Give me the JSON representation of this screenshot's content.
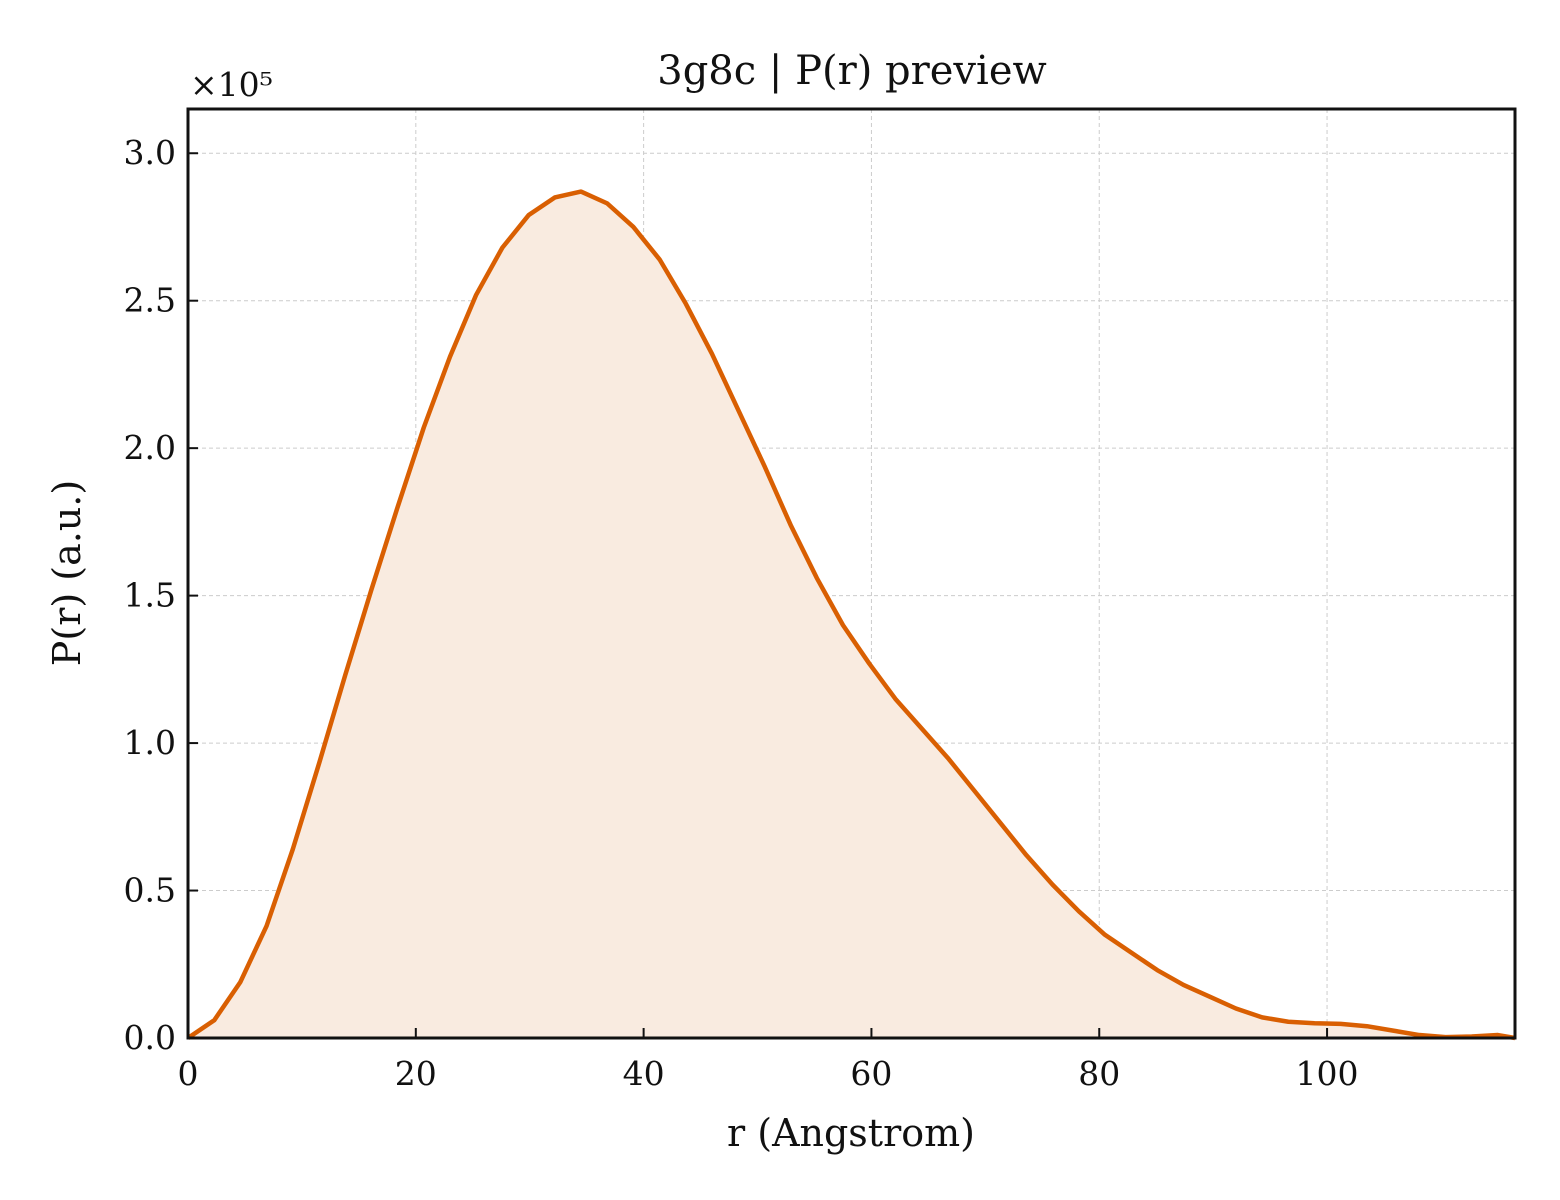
{
  "chart_data": {
    "type": "area",
    "title": "3g8c | P(r) preview",
    "xlabel": "r (Angstrom)",
    "ylabel": "P(r) (a.u.)",
    "y_multiplier_label": "×10⁵",
    "xlim": [
      0,
      116.5
    ],
    "ylim": [
      0,
      3.15
    ],
    "y_scale": 100000,
    "x_ticks": [
      0,
      20,
      40,
      60,
      80,
      100
    ],
    "x_tick_labels": [
      "0",
      "20",
      "40",
      "60",
      "80",
      "100"
    ],
    "y_ticks": [
      0,
      0.5,
      1.0,
      1.5,
      2.0,
      2.5,
      3.0
    ],
    "y_tick_labels": [
      "0.0",
      "0.5",
      "1.0",
      "1.5",
      "2.0",
      "2.5",
      "3.0"
    ],
    "grid": true,
    "color": "#d95f02",
    "fill_color": "#f9ebe0",
    "series": [
      {
        "x": [
          0,
          2.3,
          4.6,
          6.9,
          9.2,
          11.5,
          13.8,
          16.1,
          18.4,
          20.7,
          23.0,
          25.3,
          27.6,
          29.9,
          32.2,
          34.5,
          36.8,
          39.1,
          41.4,
          43.7,
          46.0,
          48.3,
          50.6,
          52.9,
          55.2,
          57.5,
          59.8,
          62.1,
          64.4,
          66.7,
          69.0,
          71.3,
          73.6,
          75.9,
          78.2,
          80.5,
          82.8,
          85.1,
          87.4,
          89.7,
          92.0,
          94.3,
          96.6,
          98.9,
          101.2,
          103.5,
          105.8,
          108.1,
          110.4,
          112.7,
          115.0,
          116.5
        ],
        "values": [
          0.0,
          0.06,
          0.19,
          0.38,
          0.64,
          0.93,
          1.23,
          1.52,
          1.8,
          2.07,
          2.31,
          2.52,
          2.68,
          2.79,
          2.85,
          2.87,
          2.83,
          2.75,
          2.64,
          2.49,
          2.32,
          2.13,
          1.94,
          1.74,
          1.56,
          1.4,
          1.27,
          1.15,
          1.05,
          0.95,
          0.84,
          0.73,
          0.62,
          0.52,
          0.43,
          0.35,
          0.29,
          0.23,
          0.18,
          0.14,
          0.1,
          0.07,
          0.055,
          0.05,
          0.048,
          0.04,
          0.025,
          0.01,
          0.003,
          0.005,
          0.01,
          0.0
        ]
      }
    ]
  }
}
